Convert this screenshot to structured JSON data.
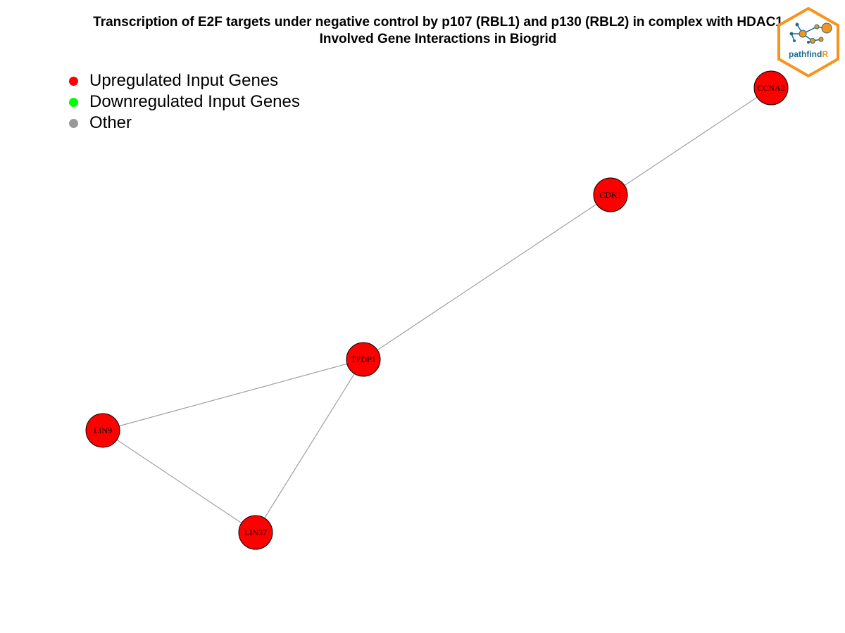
{
  "title": {
    "line1": "Transcription of E2F targets under negative control by p107 (RBL1) and p130 (RBL2) in complex with HDAC1",
    "line2": "Involved Gene Interactions in Biogrid"
  },
  "legend": [
    {
      "label": "Upregulated Input Genes",
      "color": "#ff0000",
      "name": "legend-upregulated"
    },
    {
      "label": "Downregulated Input Genes",
      "color": "#00ff00",
      "name": "legend-downregulated"
    },
    {
      "label": "Other",
      "color": "#999999",
      "name": "legend-other"
    }
  ],
  "network": {
    "node_color": "#ff0000",
    "edge_color": "#a0a0a0",
    "nodes": [
      {
        "id": "CCNA2",
        "label": "CCNA2",
        "status": "upregulated"
      },
      {
        "id": "CDK1",
        "label": "CDK1",
        "status": "upregulated"
      },
      {
        "id": "TFDP1",
        "label": "TFDP1",
        "status": "upregulated"
      },
      {
        "id": "LIN9",
        "label": "LIN9",
        "status": "upregulated"
      },
      {
        "id": "LIN37",
        "label": "LIN37",
        "status": "upregulated"
      }
    ],
    "edges": [
      [
        "CCNA2",
        "CDK1"
      ],
      [
        "CDK1",
        "TFDP1"
      ],
      [
        "TFDP1",
        "LIN9"
      ],
      [
        "TFDP1",
        "LIN37"
      ],
      [
        "LIN9",
        "LIN37"
      ]
    ]
  },
  "logo": {
    "text_main": "pathfind",
    "text_accent": "R",
    "border_color": "#f7941d",
    "text_color": "#1b6b8f",
    "accent_color": "#f7941d"
  }
}
